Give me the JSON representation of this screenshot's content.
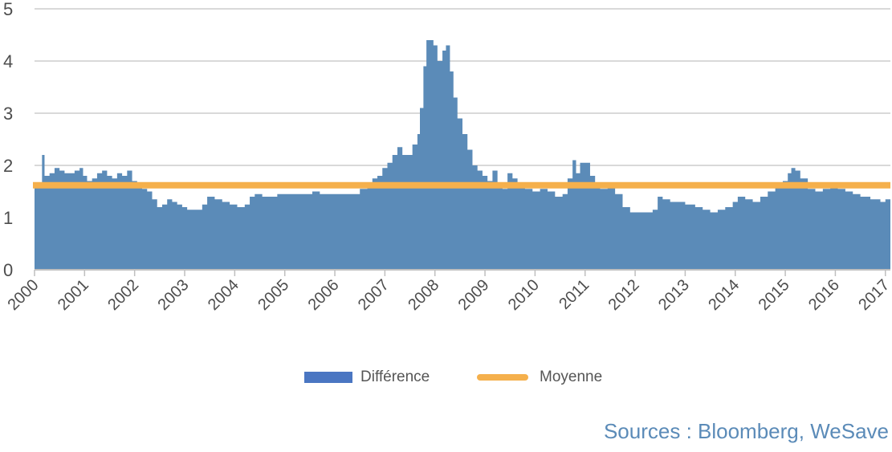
{
  "chart_data": {
    "type": "area",
    "title": "",
    "xlabel": "",
    "ylabel": "",
    "x_start": 2000,
    "x_end": 2017.1,
    "ylim": [
      0,
      5
    ],
    "y_ticks": [
      "0",
      "1",
      "2",
      "3",
      "4",
      "5"
    ],
    "x_ticks": [
      "2000",
      "2001",
      "2002",
      "2003",
      "2004",
      "2005",
      "2006",
      "2007",
      "2008",
      "2009",
      "2010",
      "2011",
      "2012",
      "2013",
      "2014",
      "2015",
      "2016",
      "2017"
    ],
    "grid": true,
    "legend_position": "bottom",
    "series": [
      {
        "name": "Différence",
        "type": "area",
        "color": "#5b8bb8",
        "legend_color": "#4a76c2",
        "points": [
          [
            2000.0,
            1.6
          ],
          [
            2000.1,
            1.65
          ],
          [
            2000.15,
            2.2
          ],
          [
            2000.2,
            1.8
          ],
          [
            2000.3,
            1.85
          ],
          [
            2000.4,
            1.95
          ],
          [
            2000.5,
            1.9
          ],
          [
            2000.6,
            1.85
          ],
          [
            2000.7,
            1.85
          ],
          [
            2000.8,
            1.9
          ],
          [
            2000.9,
            1.95
          ],
          [
            2000.97,
            1.8
          ],
          [
            2001.05,
            1.7
          ],
          [
            2001.15,
            1.75
          ],
          [
            2001.25,
            1.85
          ],
          [
            2001.35,
            1.9
          ],
          [
            2001.45,
            1.8
          ],
          [
            2001.55,
            1.75
          ],
          [
            2001.65,
            1.85
          ],
          [
            2001.75,
            1.8
          ],
          [
            2001.85,
            1.9
          ],
          [
            2001.95,
            1.7
          ],
          [
            2002.05,
            1.6
          ],
          [
            2002.15,
            1.55
          ],
          [
            2002.25,
            1.5
          ],
          [
            2002.35,
            1.35
          ],
          [
            2002.45,
            1.2
          ],
          [
            2002.55,
            1.25
          ],
          [
            2002.65,
            1.35
          ],
          [
            2002.75,
            1.3
          ],
          [
            2002.85,
            1.25
          ],
          [
            2002.95,
            1.2
          ],
          [
            2003.05,
            1.15
          ],
          [
            2003.2,
            1.15
          ],
          [
            2003.35,
            1.25
          ],
          [
            2003.45,
            1.4
          ],
          [
            2003.6,
            1.35
          ],
          [
            2003.75,
            1.3
          ],
          [
            2003.9,
            1.25
          ],
          [
            2004.05,
            1.2
          ],
          [
            2004.2,
            1.25
          ],
          [
            2004.3,
            1.4
          ],
          [
            2004.4,
            1.45
          ],
          [
            2004.55,
            1.4
          ],
          [
            2004.7,
            1.4
          ],
          [
            2004.85,
            1.45
          ],
          [
            2005.0,
            1.45
          ],
          [
            2005.2,
            1.45
          ],
          [
            2005.4,
            1.45
          ],
          [
            2005.55,
            1.5
          ],
          [
            2005.7,
            1.45
          ],
          [
            2005.9,
            1.45
          ],
          [
            2006.1,
            1.45
          ],
          [
            2006.3,
            1.45
          ],
          [
            2006.5,
            1.55
          ],
          [
            2006.65,
            1.65
          ],
          [
            2006.75,
            1.75
          ],
          [
            2006.85,
            1.8
          ],
          [
            2006.95,
            1.95
          ],
          [
            2007.05,
            2.05
          ],
          [
            2007.15,
            2.2
          ],
          [
            2007.25,
            2.35
          ],
          [
            2007.35,
            2.2
          ],
          [
            2007.45,
            2.2
          ],
          [
            2007.55,
            2.4
          ],
          [
            2007.65,
            2.6
          ],
          [
            2007.7,
            3.1
          ],
          [
            2007.77,
            3.9
          ],
          [
            2007.83,
            4.4
          ],
          [
            2007.9,
            4.4
          ],
          [
            2007.97,
            4.3
          ],
          [
            2008.05,
            4.0
          ],
          [
            2008.15,
            4.2
          ],
          [
            2008.22,
            4.3
          ],
          [
            2008.3,
            3.8
          ],
          [
            2008.37,
            3.3
          ],
          [
            2008.45,
            2.9
          ],
          [
            2008.55,
            2.6
          ],
          [
            2008.65,
            2.3
          ],
          [
            2008.75,
            2.0
          ],
          [
            2008.85,
            1.9
          ],
          [
            2008.95,
            1.8
          ],
          [
            2009.05,
            1.7
          ],
          [
            2009.15,
            1.9
          ],
          [
            2009.25,
            1.6
          ],
          [
            2009.35,
            1.55
          ],
          [
            2009.45,
            1.85
          ],
          [
            2009.55,
            1.75
          ],
          [
            2009.65,
            1.6
          ],
          [
            2009.8,
            1.55
          ],
          [
            2009.95,
            1.5
          ],
          [
            2010.1,
            1.55
          ],
          [
            2010.25,
            1.5
          ],
          [
            2010.4,
            1.4
          ],
          [
            2010.55,
            1.45
          ],
          [
            2010.65,
            1.75
          ],
          [
            2010.75,
            2.1
          ],
          [
            2010.82,
            1.85
          ],
          [
            2010.9,
            2.05
          ],
          [
            2011.0,
            2.05
          ],
          [
            2011.1,
            1.8
          ],
          [
            2011.2,
            1.65
          ],
          [
            2011.3,
            1.55
          ],
          [
            2011.45,
            1.6
          ],
          [
            2011.6,
            1.45
          ],
          [
            2011.75,
            1.2
          ],
          [
            2011.9,
            1.1
          ],
          [
            2012.05,
            1.1
          ],
          [
            2012.2,
            1.1
          ],
          [
            2012.35,
            1.15
          ],
          [
            2012.45,
            1.4
          ],
          [
            2012.55,
            1.35
          ],
          [
            2012.7,
            1.3
          ],
          [
            2012.85,
            1.3
          ],
          [
            2013.0,
            1.25
          ],
          [
            2013.2,
            1.2
          ],
          [
            2013.35,
            1.15
          ],
          [
            2013.5,
            1.1
          ],
          [
            2013.65,
            1.15
          ],
          [
            2013.8,
            1.2
          ],
          [
            2013.95,
            1.3
          ],
          [
            2014.05,
            1.4
          ],
          [
            2014.2,
            1.35
          ],
          [
            2014.35,
            1.3
          ],
          [
            2014.5,
            1.4
          ],
          [
            2014.65,
            1.5
          ],
          [
            2014.8,
            1.6
          ],
          [
            2014.95,
            1.7
          ],
          [
            2015.05,
            1.85
          ],
          [
            2015.12,
            1.95
          ],
          [
            2015.2,
            1.9
          ],
          [
            2015.3,
            1.75
          ],
          [
            2015.45,
            1.55
          ],
          [
            2015.6,
            1.5
          ],
          [
            2015.75,
            1.55
          ],
          [
            2015.9,
            1.6
          ],
          [
            2016.05,
            1.55
          ],
          [
            2016.2,
            1.5
          ],
          [
            2016.35,
            1.45
          ],
          [
            2016.5,
            1.4
          ],
          [
            2016.7,
            1.35
          ],
          [
            2016.9,
            1.3
          ],
          [
            2017.0,
            1.35
          ],
          [
            2017.1,
            1.35
          ]
        ]
      },
      {
        "name": "Moyenne",
        "type": "line",
        "color": "#f5b04c",
        "value": 1.62
      }
    ]
  },
  "legend": {
    "item_1": "Différence",
    "item_2": "Moyenne"
  },
  "source": {
    "text": "Sources : Bloomberg, WeSave",
    "color": "#5b8bb8"
  }
}
